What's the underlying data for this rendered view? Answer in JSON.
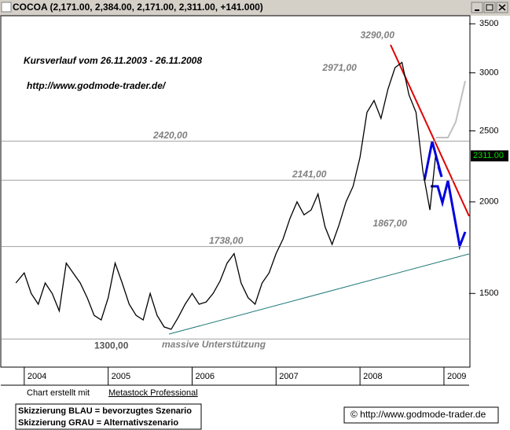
{
  "chart_data": {
    "type": "line",
    "title": "COCOA (2,171.00, 2,384.00, 2,171.00, 2,311.00, +141.000)",
    "subtitle": "Kursverlauf vom 26.11.2003 - 26.11.2008",
    "source_url": "http://www.godmode-trader.de/",
    "log_scale": true,
    "xlim": [
      2003.73,
      2009.3
    ],
    "xticks": [
      2004,
      2005,
      2006,
      2007,
      2008,
      2009
    ],
    "ylim": [
      1190,
      3590
    ],
    "yticks": [
      1500,
      2000,
      2500,
      3000,
      3500
    ],
    "series": [
      {
        "name": "COCOA",
        "color": "#000000",
        "x": [
          2003.9,
          2004.0,
          2004.083,
          2004.167,
          2004.25,
          2004.333,
          2004.417,
          2004.5,
          2004.583,
          2004.667,
          2004.75,
          2004.833,
          2004.917,
          2005.0,
          2005.083,
          2005.167,
          2005.25,
          2005.333,
          2005.417,
          2005.5,
          2005.583,
          2005.667,
          2005.75,
          2005.833,
          2005.917,
          2006.0,
          2006.083,
          2006.167,
          2006.25,
          2006.333,
          2006.417,
          2006.5,
          2006.583,
          2006.667,
          2006.75,
          2006.833,
          2006.917,
          2007.0,
          2007.083,
          2007.167,
          2007.25,
          2007.333,
          2007.417,
          2007.5,
          2007.583,
          2007.667,
          2007.75,
          2007.833,
          2007.917,
          2008.0,
          2008.083,
          2008.167,
          2008.25,
          2008.333,
          2008.417,
          2008.5,
          2008.583,
          2008.667,
          2008.75,
          2008.833,
          2008.9
        ],
        "values": [
          1550,
          1600,
          1500,
          1450,
          1550,
          1500,
          1420,
          1650,
          1600,
          1550,
          1480,
          1400,
          1380,
          1480,
          1650,
          1550,
          1450,
          1400,
          1380,
          1500,
          1400,
          1350,
          1340,
          1390,
          1450,
          1500,
          1450,
          1460,
          1500,
          1560,
          1650,
          1700,
          1550,
          1480,
          1450,
          1550,
          1600,
          1700,
          1780,
          1900,
          2000,
          1920,
          1950,
          2050,
          1850,
          1750,
          1860,
          2000,
          2100,
          2300,
          2650,
          2750,
          2600,
          2850,
          3050,
          3100,
          2800,
          2650,
          2200,
          1950,
          2311
        ]
      }
    ],
    "last_price": {
      "value": 2311,
      "label": "2311.00"
    },
    "levels": [
      {
        "value": 2420,
        "label": "2420,00"
      },
      {
        "value": 2141,
        "label": "2141,00"
      },
      {
        "value": 1738,
        "label": "1738,00"
      },
      {
        "value": 1300,
        "label": "1300,00"
      }
    ],
    "peaks": [
      {
        "x": 2008.45,
        "value": 3290,
        "label": "3290,00"
      },
      {
        "x": 2008.0,
        "value": 2971,
        "label": "2971,00"
      },
      {
        "x": 2008.6,
        "value": 1867,
        "label": "1867,00"
      }
    ],
    "support_note": "massive Unterstützung"
  },
  "footer": {
    "credit_prefix": "Chart erstellt mit",
    "credit_link": "Metastock Professional",
    "legend": [
      "Skizzierung BLAU = bevorzugtes Szenario",
      "Skizzierung GRAU = Alternativszenario"
    ],
    "copyright": "© http://www.godmode-trader.de"
  }
}
